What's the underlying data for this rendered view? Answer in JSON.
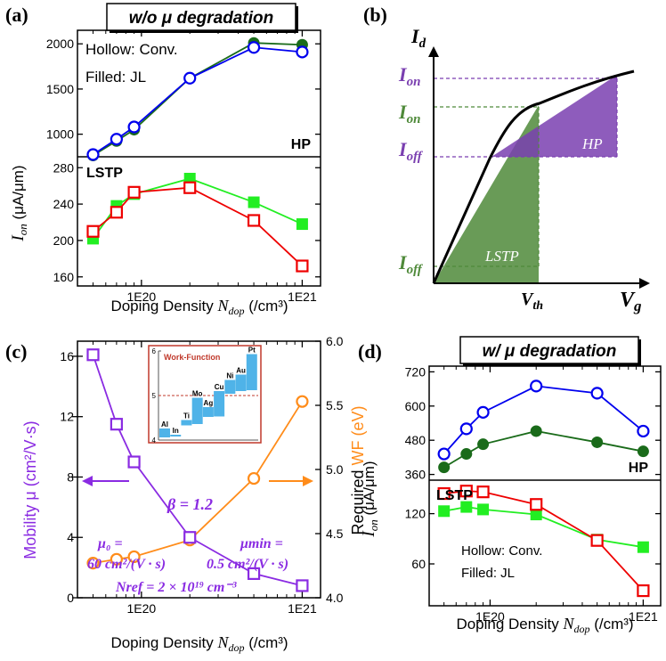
{
  "chart_data": [
    {
      "panel": "(a)",
      "title": "w/o μ degradation",
      "type": "line",
      "xlabel": "Doping Density N",
      "xlabel_sub": "dop",
      "xlabel_unit": " (/cm³)",
      "x_scale": "log",
      "x_ticks": [
        "1E20",
        "1E21"
      ],
      "ylabel": "I",
      "ylabel_sub": "on",
      "ylabel_unit": " (μA/μm)",
      "notes": [
        "Hollow: Conv.",
        "Filled:  JL"
      ],
      "subplots": [
        {
          "label": "HP",
          "ylim": [
            750,
            2150
          ],
          "yticks": [
            "1000",
            "1500",
            "2000"
          ],
          "series": [
            {
              "role": "Conv.",
              "marker": "hollow-circle",
              "color": "#0000ee",
              "x": [
                5e+19,
                7e+19,
                9e+19,
                2e+20,
                5e+20,
                1e+21
              ],
              "y": [
                775,
                945,
                1080,
                1620,
                1960,
                1910
              ]
            },
            {
              "role": "JL",
              "marker": "filled-circle",
              "color": "#1a6b1a",
              "x": [
                5e+19,
                7e+19,
                9e+19,
                2e+20,
                5e+20,
                1e+21
              ],
              "y": [
                765,
                925,
                1050,
                1620,
                2010,
                1990
              ]
            }
          ]
        },
        {
          "label": "LSTP",
          "ylim": [
            150,
            292
          ],
          "yticks": [
            "160",
            "200",
            "240",
            "280"
          ],
          "series": [
            {
              "role": "Conv.",
              "marker": "hollow-square",
              "color": "#ee0000",
              "x": [
                5e+19,
                7e+19,
                9e+19,
                2e+20,
                5e+20,
                1e+21
              ],
              "y": [
                210,
                231,
                253,
                258,
                222,
                172
              ]
            },
            {
              "role": "JL",
              "marker": "filled-square",
              "color": "#22ee22",
              "x": [
                5e+19,
                7e+19,
                9e+19,
                2e+20,
                5e+20,
                1e+21
              ],
              "y": [
                202,
                238,
                251,
                268,
                242,
                218
              ]
            }
          ]
        }
      ]
    },
    {
      "panel": "(b)",
      "type": "diagram",
      "ylabel": "I",
      "ylabel_sub": "d",
      "xlabel": "V",
      "xlabel_sub": "g",
      "vth": "V",
      "vth_sub": "th",
      "ion_label": "I",
      "ion_sub": "on",
      "ioff_label": "I",
      "ioff_sub": "off",
      "hp_label": "HP",
      "lstp_label": "LSTP",
      "colors": {
        "hp": "#7a3fb0",
        "lstp": "#4f8a3a",
        "curve": "#000000"
      }
    },
    {
      "panel": "(c)",
      "type": "line",
      "xlabel": "Doping Density N",
      "xlabel_sub": "dop",
      "xlabel_unit": " (/cm³)",
      "x_scale": "log",
      "x_ticks": [
        "1E20",
        "1E21"
      ],
      "ylabel_left": "Mobility μ (cm²/V·s)",
      "ylabel_right_a": "Required ",
      "ylabel_right_b": "WF (eV)",
      "ylim_left": [
        0,
        17
      ],
      "yticks_left": [
        "0",
        "4",
        "8",
        "12",
        "16"
      ],
      "ylim_right": [
        4.0,
        6.0
      ],
      "yticks_right": [
        "4.0",
        "4.5",
        "5.0",
        "5.5",
        "6.0"
      ],
      "series": [
        {
          "role": "mobility",
          "axis": "left",
          "marker": "hollow-square",
          "color": "#8a2be2",
          "x": [
            5e+19,
            7e+19,
            9e+19,
            2e+20,
            5e+20,
            1e+21
          ],
          "y": [
            16.1,
            11.5,
            9.0,
            4.0,
            1.6,
            0.8
          ]
        },
        {
          "role": "WF",
          "axis": "right",
          "marker": "hollow-circle",
          "color": "#ff8c1a",
          "x": [
            5e+19,
            7e+19,
            9e+19,
            2e+20,
            5e+20,
            1e+21
          ],
          "y": [
            4.27,
            4.3,
            4.32,
            4.45,
            4.93,
            5.53
          ]
        }
      ],
      "annotations": {
        "beta": "β = 1.2",
        "mu0_a": "μ₀ =",
        "mu0_b": "60 cm²/(V · s)",
        "mumin_a": "μmin =",
        "mumin_b": "0.5 cm²/(V · s)",
        "nref": "Nref = 2 × 10¹⁹ cm⁻³"
      },
      "inset": {
        "title": "Work-Function",
        "ylim": [
          4,
          6
        ],
        "yticks": [
          "4",
          "5",
          "6"
        ],
        "dashed_at": 5.0,
        "metals": [
          {
            "name": "Al",
            "lo": 4.06,
            "hi": 4.26
          },
          {
            "name": "In",
            "lo": 4.09,
            "hi": 4.12
          },
          {
            "name": "Ti",
            "lo": 4.33,
            "hi": 4.45
          },
          {
            "name": "Mo",
            "lo": 4.36,
            "hi": 4.95
          },
          {
            "name": "Ag",
            "lo": 4.52,
            "hi": 4.74
          },
          {
            "name": "Cu",
            "lo": 4.53,
            "hi": 5.1
          },
          {
            "name": "Ni",
            "lo": 5.04,
            "hi": 5.35
          },
          {
            "name": "Au",
            "lo": 5.1,
            "hi": 5.47
          },
          {
            "name": "Pt",
            "lo": 5.12,
            "hi": 5.93
          }
        ]
      }
    },
    {
      "panel": "(d)",
      "title": "w/ μ degradation",
      "type": "line",
      "xlabel": "Doping Density N",
      "xlabel_sub": "dop",
      "xlabel_unit": " (/cm³)",
      "x_scale": "log",
      "x_ticks": [
        "1E20",
        "1E21"
      ],
      "ylabel": "I",
      "ylabel_sub": "on",
      "ylabel_unit": " (μA/μm)",
      "notes": [
        "Hollow: Conv.",
        "Filled: JL"
      ],
      "subplots": [
        {
          "label": "HP",
          "ylim": [
            340,
            740
          ],
          "yticks": [
            "360",
            "480",
            "600",
            "720"
          ],
          "series": [
            {
              "role": "Conv.",
              "marker": "hollow-circle",
              "color": "#0000ee",
              "x": [
                5e+19,
                7e+19,
                9e+19,
                2e+20,
                5e+20,
                1e+21
              ],
              "y": [
                432,
                520,
                578,
                670,
                645,
                512
              ]
            },
            {
              "role": "JL",
              "marker": "filled-circle",
              "color": "#1a6b1a",
              "x": [
                5e+19,
                7e+19,
                9e+19,
                2e+20,
                5e+20,
                1e+21
              ],
              "y": [
                385,
                432,
                466,
                512,
                473,
                441
              ]
            }
          ]
        },
        {
          "label": "LSTP",
          "ylim": [
            10,
            160
          ],
          "yticks": [
            "60",
            "120"
          ],
          "series": [
            {
              "role": "Conv.",
              "marker": "hollow-square",
              "color": "#ee0000",
              "x": [
                5e+19,
                7e+19,
                9e+19,
                2e+20,
                5e+20,
                1e+21
              ],
              "y": [
                144,
                147,
                146,
                131,
                88,
                28
              ]
            },
            {
              "role": "JL",
              "marker": "filled-square",
              "color": "#22ee22",
              "x": [
                5e+19,
                7e+19,
                9e+19,
                2e+20,
                5e+20,
                1e+21
              ],
              "y": [
                123,
                128,
                125,
                119,
                89,
                80
              ]
            }
          ]
        }
      ]
    }
  ]
}
